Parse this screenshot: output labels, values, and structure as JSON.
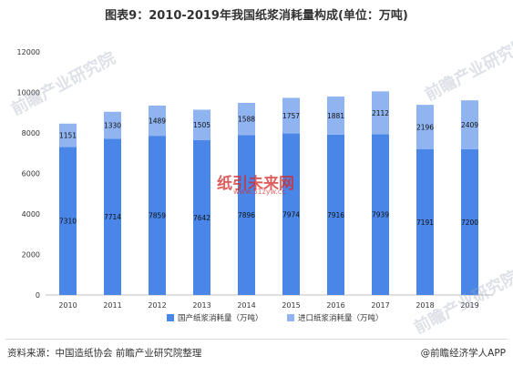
{
  "title": "图表9：2010-2019年我国纸浆消耗量构成(单位：万吨)",
  "source": "资料来源：中国造纸协会 前瞻产业研究院整理",
  "brand": "@前瞻经济学人APP",
  "watermarks": {
    "top_left": "前瞻产业研究院",
    "top_right": "前瞻产业研究院",
    "bottom_right": "前瞻产业研究院",
    "center": "纸引未来网",
    "center_url": "www.51zyw.cc"
  },
  "colors": {
    "domestic": "#4a86e8",
    "import": "#8fb4f0",
    "label": "#111111"
  },
  "chart_data": {
    "type": "bar",
    "stacked": true,
    "categories": [
      "2010",
      "2011",
      "2012",
      "2013",
      "2014",
      "2015",
      "2016",
      "2017",
      "2018",
      "2019"
    ],
    "series": [
      {
        "name": "国产纸浆消耗量（万吨）",
        "values": [
          7310,
          7714,
          7859,
          7642,
          7896,
          7974,
          7916,
          7939,
          7191,
          7200
        ]
      },
      {
        "name": "进口纸浆消耗量（万吨）",
        "values": [
          1151,
          1330,
          1489,
          1505,
          1588,
          1757,
          1881,
          2112,
          2196,
          2409
        ]
      }
    ],
    "yticks": [
      "0",
      "2000",
      "4000",
      "6000",
      "8000",
      "10000",
      "12000"
    ],
    "ylim": [
      0,
      12000
    ],
    "grid": false,
    "legend_position": "bottom"
  }
}
